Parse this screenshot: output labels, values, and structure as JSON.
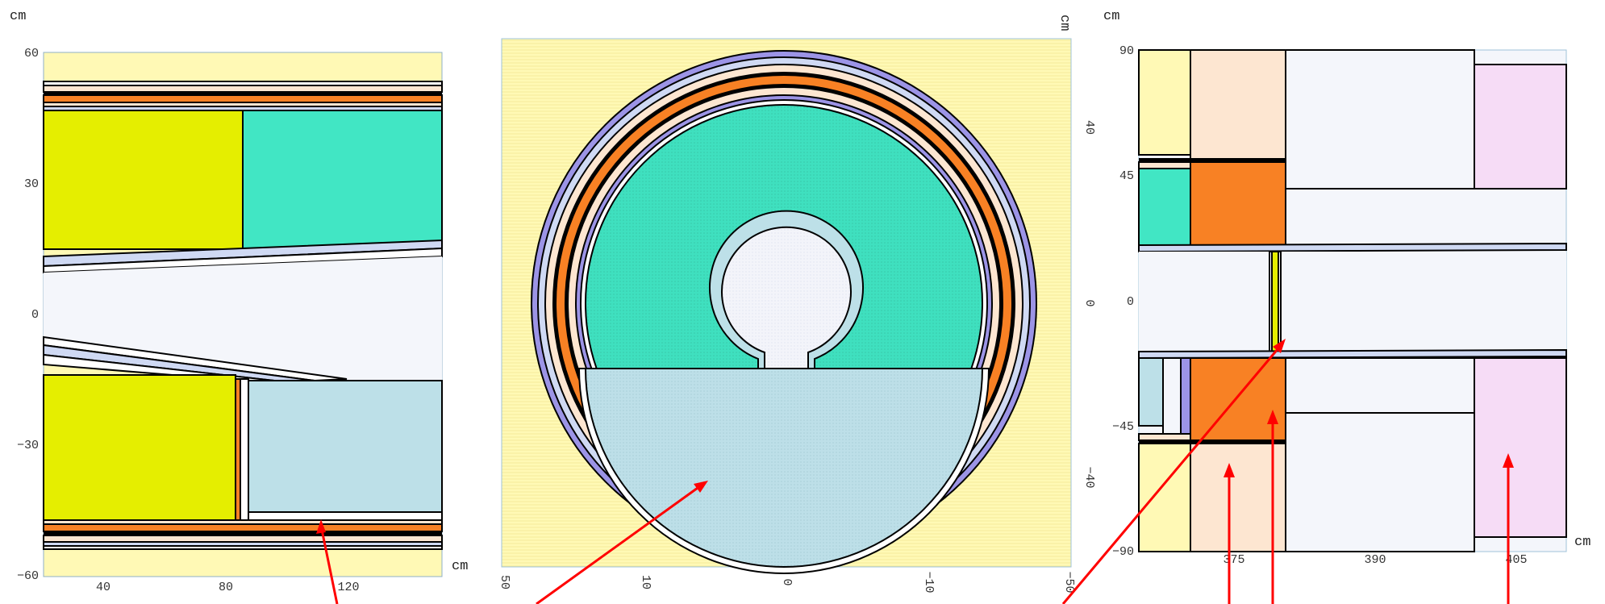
{
  "colors": {
    "pale_yellow": "#fff9b5",
    "yellow": "#e5ee00",
    "teal": "#41e6c4",
    "light_blue": "#bde0e8",
    "white_blue": "#f4f6fb",
    "orange": "#f88124",
    "peach": "#fde6d1",
    "lavender": "#9c94e6",
    "pale_blue": "#cfd9f3",
    "pink": "#f6dcf6",
    "arrow": "#ff0000"
  },
  "left_panel": {
    "unit_top": "cm",
    "unit_right": "cm",
    "y_ticks": [
      "60",
      "30",
      "0",
      "−30",
      "−60"
    ],
    "x_ticks": [
      "40",
      "80",
      "120"
    ]
  },
  "middle_panel": {
    "unit_top": "cm",
    "y_ticks": [
      "40",
      "0",
      "−40"
    ],
    "x_ticks": [
      "50",
      "10",
      "0",
      "−10",
      "−50"
    ]
  },
  "right_panel": {
    "unit_top": "cm",
    "unit_right": "cm",
    "y_ticks": [
      "90",
      "45",
      "0",
      "−45",
      "−90"
    ],
    "x_ticks": [
      "375",
      "390",
      "405"
    ]
  }
}
